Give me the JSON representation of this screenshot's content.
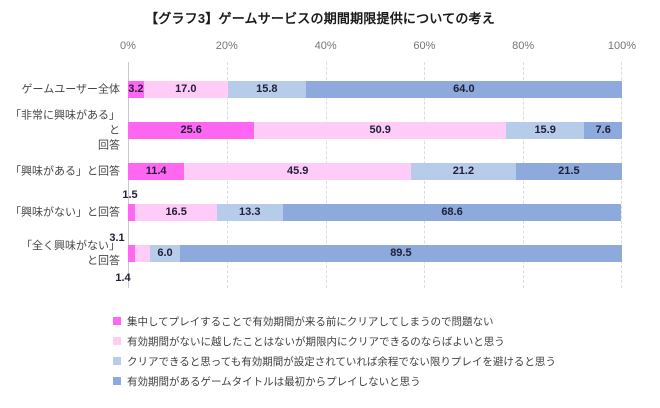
{
  "title": "【グラフ3】ゲームサービスの期間期限提供についての考え",
  "x_axis": {
    "ticks": [
      "0%",
      "20%",
      "40%",
      "60%",
      "80%",
      "100%"
    ]
  },
  "category_labels": [
    {
      "lines": [
        "ゲームユーザー全体"
      ]
    },
    {
      "lines": [
        "「非常に興味がある」と",
        "回答"
      ]
    },
    {
      "lines": [
        "「興味がある」と回答"
      ]
    },
    {
      "lines": [
        "「興味がない」と回答"
      ]
    },
    {
      "lines": [
        "「全く興味がない」",
        "と回答"
      ]
    }
  ],
  "chart_data": {
    "type": "bar",
    "orientation": "horizontal-stacked",
    "title": "【グラフ3】ゲームサービスの期間期限提供についての考え",
    "categories": [
      "ゲームユーザー全体",
      "「非常に興味がある」と回答",
      "「興味がある」と回答",
      "「興味がない」と回答",
      "「全く興味がない」と回答"
    ],
    "series": [
      {
        "name": "集中してプレイすることで有効期間が来る前にクリアしてしまうので問題ない",
        "color": "#FF66F2",
        "values": [
          3.2,
          25.6,
          11.4,
          1.5,
          1.4
        ]
      },
      {
        "name": "有効期間がないに越したことはないが期限内にクリアできるのならばよいと思う",
        "color": "#FFCCF8",
        "values": [
          17.0,
          50.9,
          45.9,
          16.5,
          3.1
        ]
      },
      {
        "name": "クリアできると思っても有効期間が設定されていれば余程でない限りプレイを避けると思う",
        "color": "#B7CCE8",
        "values": [
          15.8,
          15.9,
          21.2,
          13.3,
          6.0
        ]
      },
      {
        "name": "有効期間があるゲームタイトルは最初からプレイしないと思う",
        "color": "#8EA9DC",
        "values": [
          64.0,
          7.6,
          21.5,
          68.6,
          89.5
        ]
      }
    ],
    "xlim": [
      0,
      100
    ],
    "x_tick_interval": 20,
    "value_suffix": "%",
    "grid": true,
    "grid_style": "dashed-vertical",
    "legend_position": "bottom-left"
  }
}
